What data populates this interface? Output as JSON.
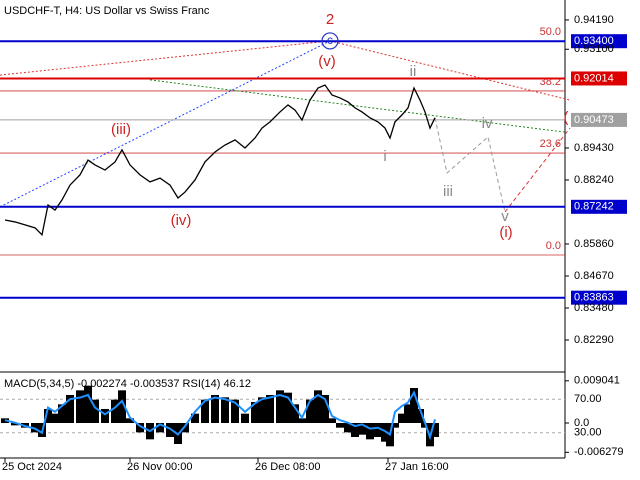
{
  "chart_data": [
    {
      "type": "line",
      "title": "USDCHF-T, H4:  US Dollar vs Swiss Franc",
      "color": "#000000",
      "x": [
        5,
        15,
        25,
        35,
        42,
        48,
        55,
        62,
        70,
        80,
        88,
        95,
        105,
        115,
        122,
        130,
        140,
        150,
        160,
        170,
        178,
        185,
        195,
        205,
        215,
        225,
        235,
        245,
        255,
        262,
        270,
        280,
        288,
        295,
        302,
        310,
        318,
        325,
        332,
        340,
        348,
        355,
        362,
        370,
        378,
        385,
        390,
        395,
        402,
        408,
        414,
        420,
        425,
        430,
        435
      ],
      "values": [
        0.8675,
        0.8668,
        0.8657,
        0.8646,
        0.862,
        0.8731,
        0.8712,
        0.875,
        0.8805,
        0.8843,
        0.8898,
        0.888,
        0.8861,
        0.8891,
        0.8936,
        0.888,
        0.8843,
        0.8817,
        0.8831,
        0.8805,
        0.8757,
        0.8779,
        0.8824,
        0.8891,
        0.8928,
        0.8954,
        0.8973,
        0.8943,
        0.898,
        0.9017,
        0.904,
        0.9077,
        0.9103,
        0.9084,
        0.9047,
        0.9121,
        0.9166,
        0.9177,
        0.914,
        0.9129,
        0.9114,
        0.9092,
        0.9077,
        0.9055,
        0.904,
        0.9017,
        0.898,
        0.904,
        0.9066,
        0.9092,
        0.9166,
        0.9121,
        0.9077,
        0.9017,
        0.9055
      ],
      "xlim": [
        0,
        565
      ],
      "ylim": [
        0.811,
        0.9482
      ],
      "xticks": [
        {
          "value": 5,
          "label": "25 Oct 2024"
        },
        {
          "value": 130,
          "label": "26 Nov 00:00"
        },
        {
          "value": 258,
          "label": "26 Dec 08:00"
        },
        {
          "value": 388,
          "label": "27 Jan 16:00"
        }
      ],
      "yticks": [
        {
          "value": 0.9419,
          "label": "0.94190"
        },
        {
          "value": 0.931,
          "label": "0.93100"
        },
        {
          "value": 0.8943,
          "label": "0.89430"
        },
        {
          "value": 0.8824,
          "label": "0.88240"
        },
        {
          "value": 0.8586,
          "label": "0.85860"
        },
        {
          "value": 0.8467,
          "label": "0.84670"
        },
        {
          "value": 0.8348,
          "label": "0.83480"
        },
        {
          "value": 0.8229,
          "label": "0.82290"
        }
      ],
      "levels": [
        {
          "value": 0.934,
          "label": "0.93400",
          "color": "#0000cc"
        },
        {
          "value": 0.92014,
          "label": "0.92014",
          "color": "#dd0000"
        },
        {
          "value": 0.90473,
          "label": "0.90473",
          "color": "#a0a0a0"
        },
        {
          "value": 0.87242,
          "label": "0.87242",
          "color": "#0000cc"
        },
        {
          "value": 0.83863,
          "label": "0.83863",
          "color": "#0000cc"
        }
      ],
      "fib_levels": [
        {
          "value": 0.934,
          "label": "50.0"
        },
        {
          "value": 0.9155,
          "label": "38.2"
        },
        {
          "value": 0.8924,
          "label": "23.6"
        },
        {
          "value": 0.8545,
          "label": "0.0"
        }
      ],
      "trendlines": [
        {
          "color": "#2244ff",
          "dash": "2 2",
          "x": [
            0,
            330
          ],
          "y": [
            0.8724,
            0.9341
          ]
        },
        {
          "color": "#dd3333",
          "dash": "2 2",
          "x": [
            0,
            330,
            570
          ],
          "y": [
            0.9214,
            0.9341,
            0.9121
          ]
        },
        {
          "color": "#228822",
          "dash": "2 2",
          "x": [
            150,
            565
          ],
          "y": [
            0.9196,
            0.9002
          ]
        },
        {
          "color": "#dd3333",
          "dash": "4 3",
          "x": [
            505,
            570
          ],
          "y": [
            0.8705,
            0.9017
          ]
        },
        {
          "color": "#999999",
          "dash": "4 3",
          "x": [
            435,
            447,
            488,
            505
          ],
          "y": [
            0.9055,
            0.885,
            0.8984,
            0.8705
          ]
        }
      ],
      "annotations": [
        {
          "text": "2",
          "x": 330,
          "y": 0.9419,
          "color": "#cc2222"
        },
        {
          "text": "c",
          "x": 330,
          "y": 0.9341,
          "color": "#2233cc"
        },
        {
          "text": "(v)",
          "x": 327,
          "y": 0.9263,
          "color": "#cc2222"
        },
        {
          "text": "(iii)",
          "x": 121,
          "y": 0.901,
          "color": "#cc2222"
        },
        {
          "text": "(iv)",
          "x": 181,
          "y": 0.8672,
          "color": "#cc2222"
        },
        {
          "text": "ii",
          "x": 413,
          "y": 0.9226,
          "color": "#888888"
        },
        {
          "text": "i",
          "x": 385,
          "y": 0.891,
          "color": "#888888"
        },
        {
          "text": "iii",
          "x": 448,
          "y": 0.8779,
          "color": "#888888"
        },
        {
          "text": "iv",
          "x": 487,
          "y": 0.9032,
          "color": "#888888"
        },
        {
          "text": "v",
          "x": 505,
          "y": 0.8686,
          "color": "#888888"
        },
        {
          "text": "(i)",
          "x": 506,
          "y": 0.8627,
          "color": "#cc2222"
        },
        {
          "text": "(",
          "x": 566,
          "y": 0.9055,
          "color": "#cc2222"
        }
      ]
    },
    {
      "type": "macd",
      "title": "MACD(5,34,5) -0.002274 -0.003537 RSI(14) 46.12",
      "x": [
        5,
        15,
        25,
        35,
        42,
        48,
        55,
        62,
        70,
        80,
        88,
        95,
        105,
        115,
        122,
        130,
        140,
        150,
        160,
        170,
        178,
        185,
        195,
        205,
        215,
        225,
        235,
        245,
        255,
        262,
        270,
        280,
        288,
        295,
        302,
        310,
        318,
        325,
        332,
        340,
        348,
        355,
        362,
        370,
        378,
        385,
        390,
        395,
        402,
        408,
        414,
        420,
        425,
        430,
        435
      ],
      "xlim": [
        0,
        565
      ],
      "ylim": [
        -0.0075,
        0.0105
      ],
      "y2lim": [
        0,
        100
      ],
      "yticks": [
        {
          "value": 0.009041,
          "label": "0.009041"
        },
        {
          "value": 0,
          "label": "0.0"
        },
        {
          "value": -0.006279,
          "label": "-0.006279"
        }
      ],
      "y2ticks": [
        {
          "value": 70,
          "label": "70.00"
        },
        {
          "value": 30,
          "label": "30.00"
        }
      ],
      "series": [
        {
          "color": "#000000",
          "values": [
            0.001,
            -0.0005,
            -0.001,
            -0.002,
            -0.003,
            0.003,
            0.002,
            0.004,
            0.006,
            0.007,
            0.008,
            0.005,
            0.003,
            0.005,
            0.007,
            0.001,
            -0.002,
            -0.0035,
            -0.002,
            -0.003,
            -0.0045,
            -0.002,
            0.002,
            0.005,
            0.006,
            0.0055,
            0.005,
            0.002,
            0.0045,
            0.0055,
            0.006,
            0.007,
            0.0065,
            0.004,
            0.001,
            0.005,
            0.007,
            0.006,
            0.001,
            -0.001,
            -0.002,
            -0.003,
            -0.0025,
            -0.0035,
            -0.003,
            -0.004,
            -0.005,
            -0.001,
            0.002,
            0.004,
            0.0075,
            0.003,
            -0.001,
            -0.005,
            -0.003
          ]
        },
        {
          "color": "#1e90ff",
          "axis": "y2",
          "values": [
            45,
            42,
            38,
            35,
            30,
            60,
            55,
            62,
            70,
            72,
            75,
            60,
            52,
            60,
            68,
            48,
            38,
            32,
            40,
            35,
            28,
            38,
            55,
            68,
            72,
            70,
            66,
            55,
            65,
            70,
            72,
            75,
            72,
            60,
            48,
            68,
            75,
            70,
            50,
            45,
            42,
            38,
            40,
            35,
            36,
            32,
            28,
            55,
            62,
            66,
            78,
            58,
            42,
            25,
            46
          ]
        }
      ]
    }
  ]
}
